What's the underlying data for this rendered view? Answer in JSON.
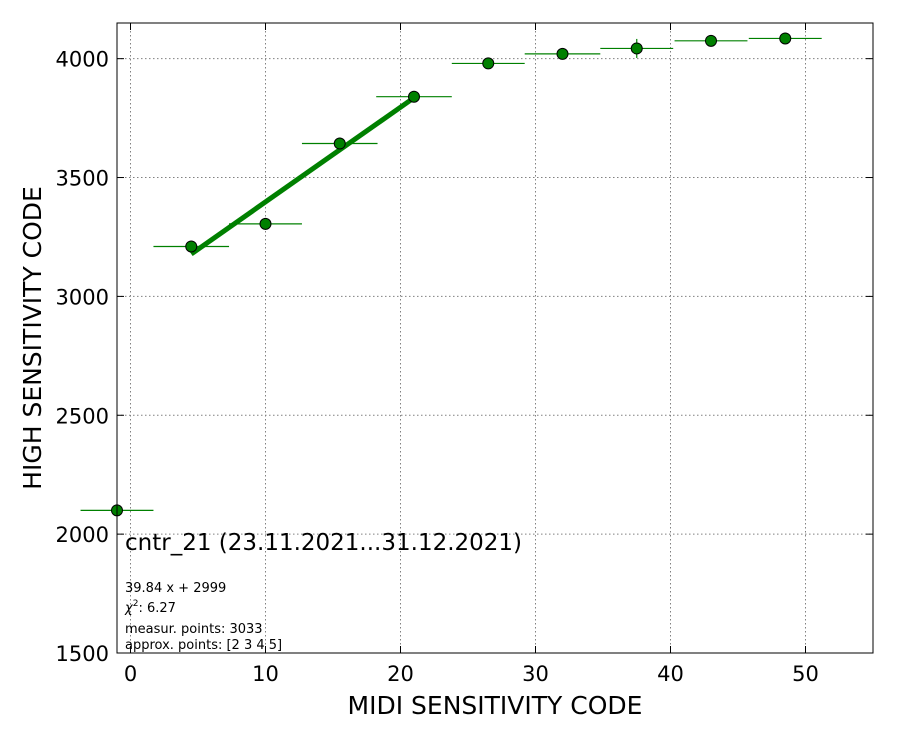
{
  "chart_data": {
    "type": "scatter",
    "xlabel": "MIDI SENSITIVITY CODE",
    "ylabel": "HIGH SENSITIVITY CODE",
    "xlim": [
      -1,
      55
    ],
    "ylim": [
      1500,
      4150
    ],
    "xticks": [
      "0",
      "10",
      "20",
      "30",
      "40",
      "50"
    ],
    "xtick_values": [
      0,
      10,
      20,
      30,
      40,
      50
    ],
    "yticks": [
      "1500",
      "2000",
      "2500",
      "3000",
      "3500",
      "4000"
    ],
    "ytick_values": [
      1500,
      2000,
      2500,
      3000,
      3500,
      4000
    ],
    "grid": true,
    "series": [
      {
        "marker": "circle",
        "color": "#008000",
        "points": [
          {
            "x": -1,
            "y": 2100,
            "xerr": 2.7,
            "yerr": 8
          },
          {
            "x": 4.5,
            "y": 3210,
            "xerr": 2.8,
            "yerr": 20
          },
          {
            "x": 10.0,
            "y": 3305,
            "xerr": 2.7,
            "yerr": 25
          },
          {
            "x": 15.5,
            "y": 3643,
            "xerr": 2.8,
            "yerr": 25
          },
          {
            "x": 21.0,
            "y": 3840,
            "xerr": 2.8,
            "yerr": 20
          },
          {
            "x": 26.5,
            "y": 3980,
            "xerr": 2.7,
            "yerr": 15
          },
          {
            "x": 32.0,
            "y": 4020,
            "xerr": 2.8,
            "yerr": 15
          },
          {
            "x": 37.5,
            "y": 4043,
            "xerr": 2.7,
            "yerr": 40
          },
          {
            "x": 43.0,
            "y": 4075,
            "xerr": 2.7,
            "yerr": 10
          },
          {
            "x": 48.5,
            "y": 4085,
            "xerr": 2.7,
            "yerr": 10
          }
        ]
      }
    ],
    "fit": {
      "slope": 39.84,
      "intercept": 2999,
      "x_range": [
        4.5,
        21.0
      ],
      "color": "#008000"
    },
    "annotations": {
      "title": "cntr_21 (23.11.2021...31.12.2021)",
      "equation": "39.84 x + 2999",
      "chi_label": "χ",
      "chi_sup": "2",
      "chi_value": ": 6.27",
      "measur": "measur. points: 3033",
      "approx": "approx. points: [2 3 4 5]"
    }
  }
}
